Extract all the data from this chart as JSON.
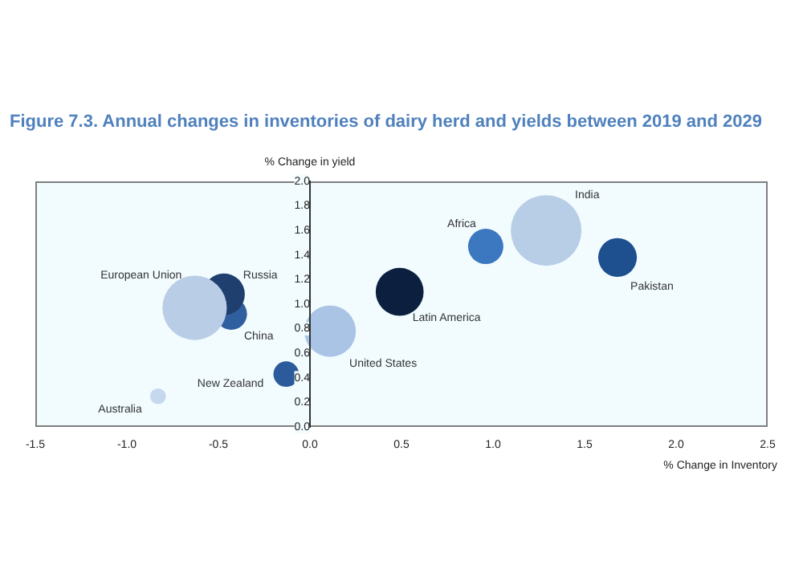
{
  "chart_data": {
    "type": "bubble",
    "title": "Figure 7.3. Annual changes in inventories of dairy herd and yields between 2019 and 2029",
    "xlabel": "% Change in Inventory",
    "ylabel": "% Change in yield",
    "xlim": [
      -1.5,
      2.5
    ],
    "xticks": [
      -1.5,
      {
        "value": -1,
        "label": "-1.0"
      },
      -0.5,
      {
        "value": 0,
        "label": "0.0"
      },
      0.5,
      {
        "value": 1,
        "label": "1.0"
      },
      1.5,
      {
        "value": 2,
        "label": "2.0"
      },
      2.5
    ],
    "ylim": [
      0,
      2
    ],
    "yticks": [
      {
        "value": 0,
        "label": "0.0"
      },
      {
        "value": 0.2,
        "label": "0.2"
      },
      {
        "value": 0.4,
        "label": "0.4"
      },
      {
        "value": 0.6,
        "label": "0.6"
      },
      {
        "value": 0.8,
        "label": "0.8"
      },
      {
        "value": 1,
        "label": "1.0"
      },
      {
        "value": 1.2,
        "label": "1.2"
      },
      {
        "value": 1.4,
        "label": "1.4"
      },
      {
        "value": 1.6,
        "label": "1.6"
      },
      {
        "value": 1.8,
        "label": "1.8"
      },
      {
        "value": 2,
        "label": "2.0"
      }
    ],
    "grid": false,
    "legend": false,
    "series": [
      {
        "name": "European Union",
        "color": "#b9cde6",
        "x": [
          -0.63
        ],
        "values": [
          0.97
        ],
        "sizes": [
          0.83
        ]
      },
      {
        "name": "Russia",
        "color": "#1f3f6e",
        "x": [
          -0.47
        ],
        "values": [
          1.08
        ],
        "sizes": [
          0.35
        ]
      },
      {
        "name": "China",
        "color": "#2f5f9e",
        "x": [
          -0.43
        ],
        "values": [
          0.92
        ],
        "sizes": [
          0.2
        ]
      },
      {
        "name": "United States",
        "color": "#a9c4e4",
        "x": [
          0.11
        ],
        "values": [
          0.78
        ],
        "sizes": [
          0.53
        ]
      },
      {
        "name": "New Zealand",
        "color": "#2b5b9a",
        "x": [
          -0.13
        ],
        "values": [
          0.43
        ],
        "sizes": [
          0.13
        ]
      },
      {
        "name": "Australia",
        "color": "#c6d8ee",
        "x": [
          -0.83
        ],
        "values": [
          0.25
        ],
        "sizes": [
          0.05
        ]
      },
      {
        "name": "Latin America",
        "color": "#0c1f3f",
        "x": [
          0.49
        ],
        "values": [
          1.1
        ],
        "sizes": [
          0.46
        ]
      },
      {
        "name": "Africa",
        "color": "#3b78c0",
        "x": [
          0.96
        ],
        "values": [
          1.47
        ],
        "sizes": [
          0.25
        ]
      },
      {
        "name": "India",
        "color": "#b8cde6",
        "x": [
          1.29
        ],
        "values": [
          1.6
        ],
        "sizes": [
          1
        ]
      },
      {
        "name": "Pakistan",
        "color": "#1e4f8e",
        "x": [
          1.68
        ],
        "values": [
          1.38
        ],
        "sizes": [
          0.3
        ]
      }
    ]
  }
}
